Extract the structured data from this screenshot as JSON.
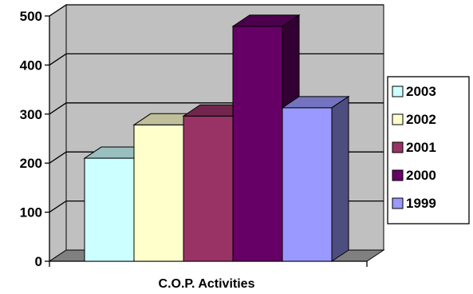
{
  "chart_data": {
    "type": "bar",
    "title": "",
    "xlabel": "C.O.P. Activities",
    "ylabel": "",
    "ylim": [
      0,
      500
    ],
    "yticks": [
      0,
      100,
      200,
      300,
      400,
      500
    ],
    "categories": [
      "C.O.P. Activities"
    ],
    "grid": true,
    "three_d": true,
    "legend_position": "right",
    "series": [
      {
        "name": "2003",
        "values": [
          210
        ],
        "color": "#ccffff"
      },
      {
        "name": "2002",
        "values": [
          278
        ],
        "color": "#ffffcc"
      },
      {
        "name": "2001",
        "values": [
          296
        ],
        "color": "#993366"
      },
      {
        "name": "2000",
        "values": [
          479
        ],
        "color": "#660066"
      },
      {
        "name": "1999",
        "values": [
          313
        ],
        "color": "#9999ff"
      }
    ],
    "colors": {
      "wall": "#c0c0c0",
      "floor": "#808080",
      "gridline": "#000000"
    }
  }
}
